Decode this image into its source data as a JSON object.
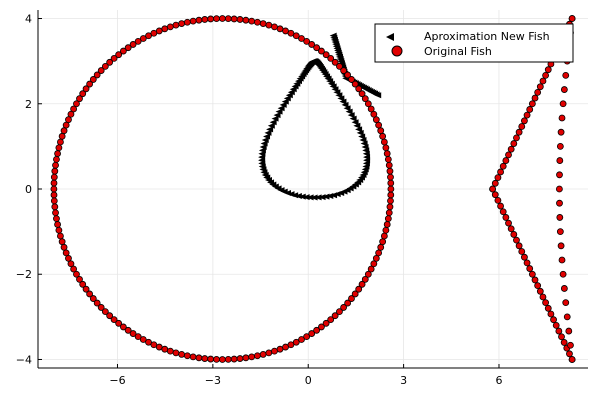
{
  "chart_data": {
    "type": "scatter",
    "title": "",
    "xlabel": "",
    "ylabel": "",
    "xlim": [
      -8.5,
      8.8
    ],
    "ylim": [
      -4.2,
      4.2
    ],
    "xticks": [
      -6,
      -3,
      0,
      3,
      6
    ],
    "yticks": [
      -4,
      -2,
      0,
      2,
      4
    ],
    "grid": true,
    "legend_position": "top-right",
    "colors": {
      "approx": "#000000",
      "original": "#e00000"
    },
    "series": [
      {
        "name": "Aproximation New Fish",
        "marker": "triangle-left",
        "curve": "teardrop",
        "curve_params": {
          "cx": 0.2,
          "cy": 1.2,
          "x_span": 2.3,
          "y_span": 2.5,
          "x_tip": 0.8,
          "y_tip": 3.6,
          "x_spur": 2.2,
          "y_spur": 2.2
        },
        "n_points": 120
      },
      {
        "name": "Original Fish",
        "marker": "circle",
        "curve": "fish",
        "curve_params": {
          "center_x": -2.7,
          "radius": 5.3,
          "a": 4.0
        },
        "n_points": 180
      }
    ]
  }
}
